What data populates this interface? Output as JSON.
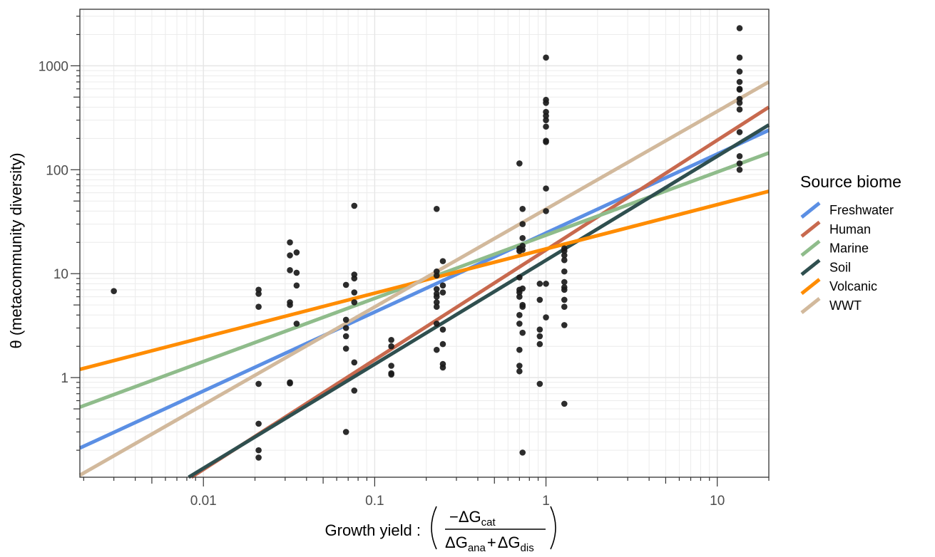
{
  "chart_data": {
    "type": "scatter",
    "xlabel": "Growth yield :",
    "xlabel_formula": {
      "numerator": "−ΔG",
      "numerator_sub": "cat",
      "denominator_a": "ΔG",
      "denominator_a_sub": "ana",
      "denominator_plus": "+",
      "denominator_b": "ΔG",
      "denominator_b_sub": "dis"
    },
    "ylabel": "θ (metacommunity diversity)",
    "x_scale": "log10",
    "y_scale": "log10",
    "xlim": [
      0.0019,
      20
    ],
    "ylim": [
      0.11,
      3500
    ],
    "x_ticks": [
      0.01,
      0.1,
      1,
      10
    ],
    "x_tick_labels": [
      "0.01",
      "0.1",
      "1",
      "10"
    ],
    "y_ticks": [
      1,
      10,
      100,
      1000
    ],
    "y_tick_labels": [
      "1",
      "10",
      "100",
      "1000"
    ],
    "grid": true,
    "legend": {
      "title": "Source biome",
      "position": "right",
      "entries": [
        {
          "name": "Freshwater",
          "color": "#5b8fe4"
        },
        {
          "name": "Human",
          "color": "#c8694e"
        },
        {
          "name": "Marine",
          "color": "#8fbc8b"
        },
        {
          "name": "Soil",
          "color": "#2f4f4f"
        },
        {
          "name": "Volcanic",
          "color": "#ff8c00"
        },
        {
          "name": "WWT",
          "color": "#d2b99c"
        }
      ]
    },
    "fit_lines": [
      {
        "name": "Freshwater",
        "color": "#5b8fe4",
        "x": [
          0.0019,
          20
        ],
        "y": [
          0.21,
          240
        ]
      },
      {
        "name": "Human",
        "color": "#c8694e",
        "x": [
          0.0085,
          20
        ],
        "y": [
          0.11,
          400
        ]
      },
      {
        "name": "Marine",
        "color": "#8fbc8b",
        "x": [
          0.0019,
          20
        ],
        "y": [
          0.52,
          145
        ]
      },
      {
        "name": "Soil",
        "color": "#2f4f4f",
        "x": [
          0.0082,
          20
        ],
        "y": [
          0.11,
          270
        ]
      },
      {
        "name": "Volcanic",
        "color": "#ff8c00",
        "x": [
          0.0019,
          20
        ],
        "y": [
          1.2,
          62
        ]
      },
      {
        "name": "WWT",
        "color": "#d2b99c",
        "x": [
          0.0019,
          20
        ],
        "y": [
          0.115,
          700
        ]
      }
    ],
    "points": [
      {
        "x": 0.003,
        "y": 6.8
      },
      {
        "x": 0.021,
        "y": 7.0
      },
      {
        "x": 0.021,
        "y": 6.4
      },
      {
        "x": 0.021,
        "y": 4.8
      },
      {
        "x": 0.021,
        "y": 0.87
      },
      {
        "x": 0.021,
        "y": 0.36
      },
      {
        "x": 0.021,
        "y": 0.2
      },
      {
        "x": 0.021,
        "y": 0.17
      },
      {
        "x": 0.032,
        "y": 20
      },
      {
        "x": 0.032,
        "y": 15
      },
      {
        "x": 0.032,
        "y": 10.8
      },
      {
        "x": 0.032,
        "y": 5.3
      },
      {
        "x": 0.032,
        "y": 5.0
      },
      {
        "x": 0.032,
        "y": 0.9
      },
      {
        "x": 0.032,
        "y": 0.88
      },
      {
        "x": 0.035,
        "y": 16
      },
      {
        "x": 0.035,
        "y": 10.2
      },
      {
        "x": 0.035,
        "y": 7.7
      },
      {
        "x": 0.035,
        "y": 3.3
      },
      {
        "x": 0.068,
        "y": 7.8
      },
      {
        "x": 0.068,
        "y": 3.6
      },
      {
        "x": 0.068,
        "y": 3.0
      },
      {
        "x": 0.068,
        "y": 2.5
      },
      {
        "x": 0.068,
        "y": 1.9
      },
      {
        "x": 0.068,
        "y": 0.3
      },
      {
        "x": 0.076,
        "y": 45
      },
      {
        "x": 0.076,
        "y": 9.8
      },
      {
        "x": 0.076,
        "y": 9.0
      },
      {
        "x": 0.076,
        "y": 6.6
      },
      {
        "x": 0.076,
        "y": 5.3
      },
      {
        "x": 0.076,
        "y": 1.4
      },
      {
        "x": 0.076,
        "y": 0.75
      },
      {
        "x": 0.125,
        "y": 2.3
      },
      {
        "x": 0.125,
        "y": 2.0
      },
      {
        "x": 0.125,
        "y": 1.3
      },
      {
        "x": 0.125,
        "y": 1.1
      },
      {
        "x": 0.125,
        "y": 1.07
      },
      {
        "x": 0.23,
        "y": 42
      },
      {
        "x": 0.23,
        "y": 10.5
      },
      {
        "x": 0.23,
        "y": 9.6
      },
      {
        "x": 0.23,
        "y": 7.1
      },
      {
        "x": 0.23,
        "y": 6.4
      },
      {
        "x": 0.23,
        "y": 6.0
      },
      {
        "x": 0.23,
        "y": 5.3
      },
      {
        "x": 0.23,
        "y": 4.8
      },
      {
        "x": 0.23,
        "y": 3.3
      },
      {
        "x": 0.23,
        "y": 1.85
      },
      {
        "x": 0.25,
        "y": 13.2
      },
      {
        "x": 0.25,
        "y": 7.7
      },
      {
        "x": 0.25,
        "y": 6.6
      },
      {
        "x": 0.25,
        "y": 2.9
      },
      {
        "x": 0.25,
        "y": 2.1
      },
      {
        "x": 0.25,
        "y": 1.35
      },
      {
        "x": 0.25,
        "y": 1.25
      },
      {
        "x": 0.7,
        "y": 115
      },
      {
        "x": 0.7,
        "y": 17.5
      },
      {
        "x": 0.7,
        "y": 16.5
      },
      {
        "x": 0.7,
        "y": 9.2
      },
      {
        "x": 0.7,
        "y": 7.0
      },
      {
        "x": 0.7,
        "y": 6.6
      },
      {
        "x": 0.7,
        "y": 6.0
      },
      {
        "x": 0.7,
        "y": 4.0
      },
      {
        "x": 0.7,
        "y": 3.3
      },
      {
        "x": 0.7,
        "y": 1.85
      },
      {
        "x": 0.7,
        "y": 1.3
      },
      {
        "x": 0.7,
        "y": 1.15
      },
      {
        "x": 0.73,
        "y": 42
      },
      {
        "x": 0.73,
        "y": 30
      },
      {
        "x": 0.73,
        "y": 22
      },
      {
        "x": 0.73,
        "y": 18.5
      },
      {
        "x": 0.73,
        "y": 17.0
      },
      {
        "x": 0.73,
        "y": 7.2
      },
      {
        "x": 0.73,
        "y": 5.0
      },
      {
        "x": 0.73,
        "y": 4.8
      },
      {
        "x": 0.73,
        "y": 2.7
      },
      {
        "x": 0.73,
        "y": 0.19
      },
      {
        "x": 0.92,
        "y": 8.0
      },
      {
        "x": 0.92,
        "y": 5.6
      },
      {
        "x": 0.92,
        "y": 2.9
      },
      {
        "x": 0.92,
        "y": 2.5
      },
      {
        "x": 0.92,
        "y": 2.1
      },
      {
        "x": 0.92,
        "y": 0.87
      },
      {
        "x": 1.0,
        "y": 1200
      },
      {
        "x": 1.0,
        "y": 470
      },
      {
        "x": 1.0,
        "y": 440
      },
      {
        "x": 1.0,
        "y": 360
      },
      {
        "x": 1.0,
        "y": 330
      },
      {
        "x": 1.0,
        "y": 300
      },
      {
        "x": 1.0,
        "y": 260
      },
      {
        "x": 1.0,
        "y": 190
      },
      {
        "x": 1.0,
        "y": 185
      },
      {
        "x": 1.0,
        "y": 66
      },
      {
        "x": 1.0,
        "y": 40
      },
      {
        "x": 1.0,
        "y": 8.0
      },
      {
        "x": 1.0,
        "y": 3.8
      },
      {
        "x": 1.28,
        "y": 17.5
      },
      {
        "x": 1.28,
        "y": 16.5
      },
      {
        "x": 1.28,
        "y": 15.0
      },
      {
        "x": 1.28,
        "y": 13.5
      },
      {
        "x": 1.28,
        "y": 10.5
      },
      {
        "x": 1.28,
        "y": 8.3
      },
      {
        "x": 1.28,
        "y": 7.4
      },
      {
        "x": 1.28,
        "y": 7.0
      },
      {
        "x": 1.28,
        "y": 5.6
      },
      {
        "x": 1.28,
        "y": 4.8
      },
      {
        "x": 1.28,
        "y": 3.2
      },
      {
        "x": 1.28,
        "y": 0.56
      },
      {
        "x": 13.5,
        "y": 2300
      },
      {
        "x": 13.5,
        "y": 1200
      },
      {
        "x": 13.5,
        "y": 880
      },
      {
        "x": 13.5,
        "y": 700
      },
      {
        "x": 13.5,
        "y": 600
      },
      {
        "x": 13.5,
        "y": 590
      },
      {
        "x": 13.5,
        "y": 480
      },
      {
        "x": 13.5,
        "y": 440
      },
      {
        "x": 13.5,
        "y": 380
      },
      {
        "x": 13.5,
        "y": 230
      },
      {
        "x": 13.5,
        "y": 135
      },
      {
        "x": 13.5,
        "y": 115
      },
      {
        "x": 13.5,
        "y": 100
      }
    ]
  }
}
